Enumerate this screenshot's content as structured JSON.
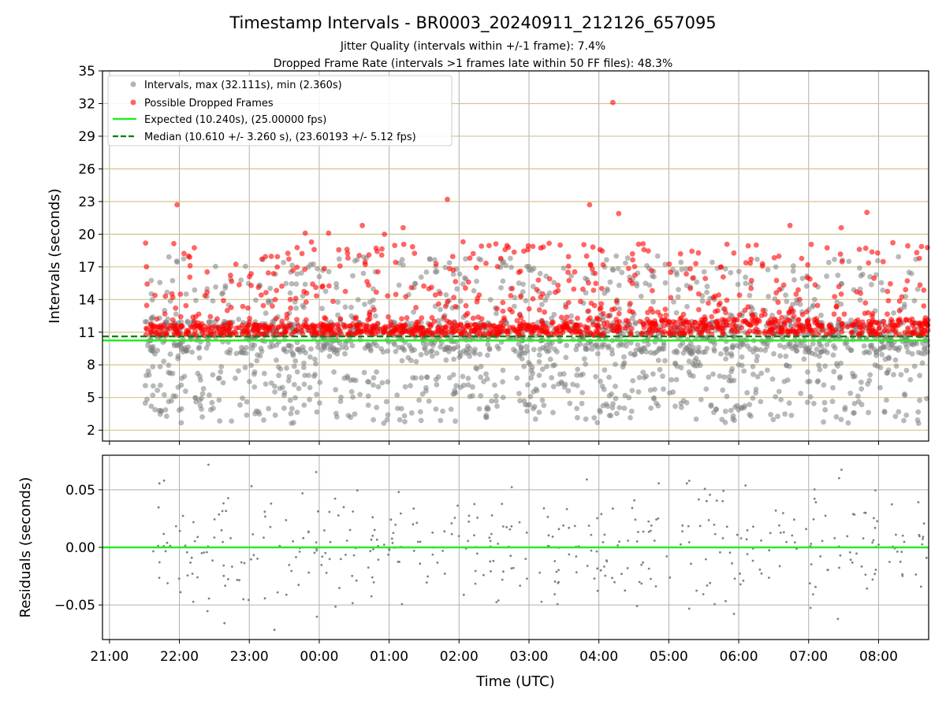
{
  "chart_data": [
    {
      "type": "scatter",
      "title": "Timestamp Intervals - BR0003_20240911_212126_657095",
      "subtitle_1": "Jitter Quality (intervals within +/-1 frame): 7.4%",
      "subtitle_2": "Dropped Frame Rate (intervals >1 frames late within 50 FF files): 48.3%",
      "xlabel": "",
      "ylabel": "Intervals (seconds)",
      "xlim": [
        "20:54",
        "08:43"
      ],
      "ylim": [
        1,
        35
      ],
      "yticks": [
        2,
        5,
        8,
        11,
        14,
        17,
        20,
        23,
        26,
        29,
        32,
        35
      ],
      "grid": true,
      "legend_position": "top-left",
      "data_start": "21:30",
      "data_end": "08:43",
      "series": [
        {
          "name": "Intervals, max (32.111s), min (2.360s)",
          "marker": "circle",
          "color": "#808080",
          "summary": {
            "max": 32.111,
            "min": 2.36
          }
        },
        {
          "name": "Possible Dropped Frames",
          "marker": "circle",
          "color": "#ff0000",
          "points": [
            [
              "04:12",
              32.1
            ],
            [
              "01:50",
              23.2
            ],
            [
              "21:58",
              22.7
            ],
            [
              "03:52",
              22.7
            ],
            [
              "07:50",
              22.0
            ],
            [
              "04:17",
              21.9
            ],
            [
              "00:37",
              20.8
            ],
            [
              "06:44",
              20.8
            ],
            [
              "01:12",
              20.6
            ],
            [
              "07:28",
              20.6
            ],
            [
              "23:48",
              20.1
            ],
            [
              "00:08",
              20.1
            ],
            [
              "00:56",
              20.0
            ]
          ]
        },
        {
          "name": "Expected (10.240s), (25.00000 fps)",
          "type": "hline",
          "y": 10.24,
          "color": "#22ee22"
        },
        {
          "name": "Median (10.610 +/- 3.260 s), (23.60193 +/- 5.12 fps)",
          "type": "hline",
          "y": 10.61,
          "color": "#008000",
          "style": "dashed"
        }
      ]
    },
    {
      "type": "scatter",
      "xlabel": "Time (UTC)",
      "ylabel": "Residuals (seconds)",
      "xlim": [
        "20:54",
        "08:43"
      ],
      "ylim": [
        -0.08,
        0.08
      ],
      "yticks": [
        -0.05,
        0.0,
        0.05
      ],
      "ytick_labels": [
        "−0.05",
        "0.00",
        "0.05"
      ],
      "xticks": [
        "21:00",
        "22:00",
        "23:00",
        "00:00",
        "01:00",
        "02:00",
        "03:00",
        "04:00",
        "05:00",
        "06:00",
        "07:00",
        "08:00"
      ],
      "grid": true,
      "series": [
        {
          "name": "",
          "marker": "dot",
          "color": "#808080"
        },
        {
          "name": "",
          "type": "hline",
          "y": 0.0,
          "color": "#22ee22"
        }
      ]
    }
  ],
  "colors": {
    "grey_points": "#808080",
    "red_points": "#ff0000",
    "expected_line": "#22ee22",
    "median_line": "#008000",
    "hgrid_top": "#d4c48a",
    "grid": "#b0b0b0"
  }
}
